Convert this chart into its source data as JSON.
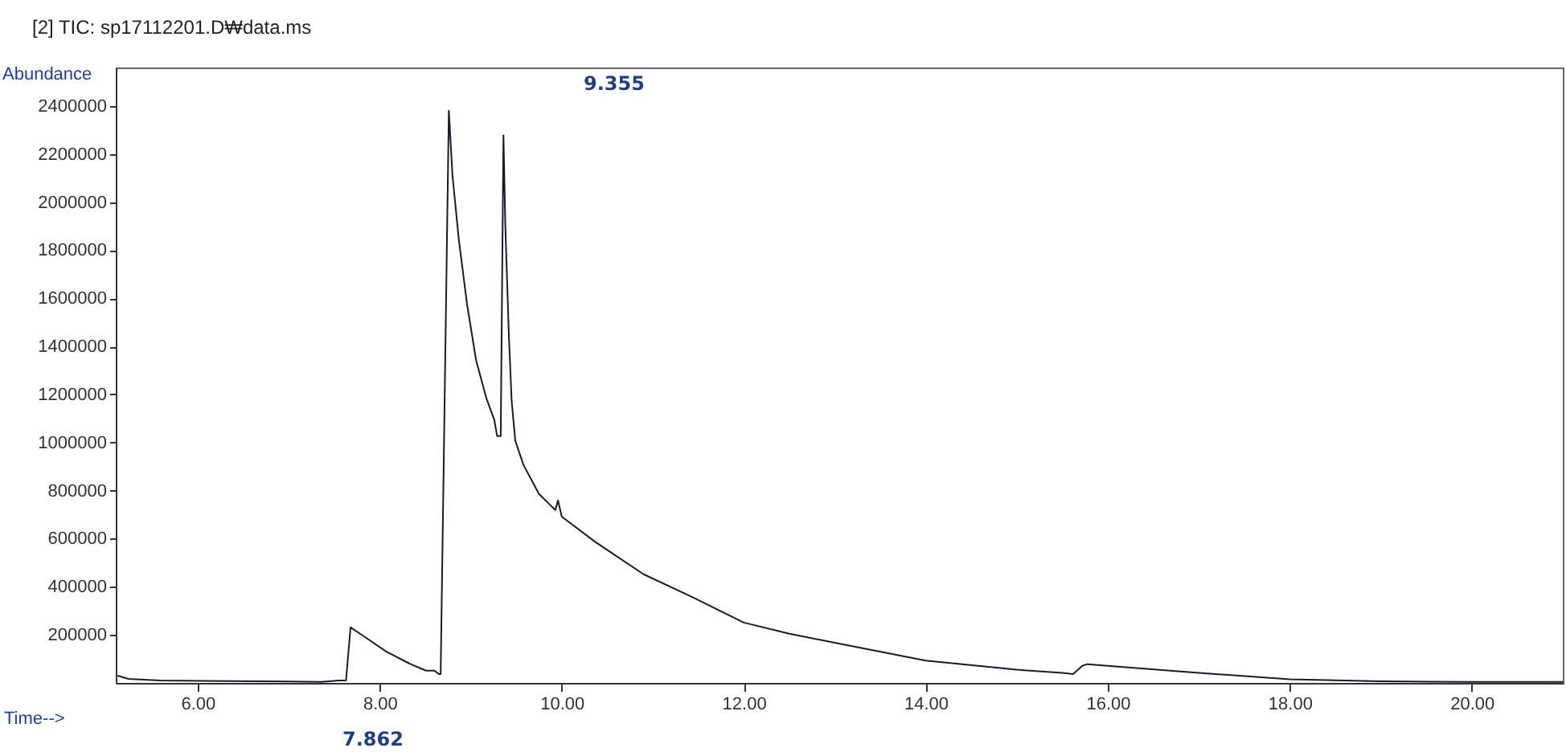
{
  "chart_data": {
    "type": "line",
    "title": "[2] TIC: sp17112201.D₩data.ms",
    "xlabel": "Time-->",
    "ylabel": "Abundance",
    "annotations": [
      "9.355",
      "7.862"
    ],
    "x": [
      5.12,
      5.24,
      5.59,
      7.0,
      7.36,
      7.55,
      7.63,
      7.68,
      7.81,
      8.07,
      8.34,
      8.51,
      8.6,
      8.65,
      8.67,
      8.71,
      8.76,
      8.8,
      8.87,
      8.96,
      9.06,
      9.17,
      9.26,
      9.29,
      9.33,
      9.35,
      9.36,
      9.38,
      9.42,
      9.45,
      9.49,
      9.58,
      9.75,
      9.93,
      9.96,
      10.0,
      10.37,
      10.9,
      11.43,
      12.0,
      12.5,
      13.0,
      14.0,
      15.0,
      15.5,
      15.62,
      15.72,
      15.78,
      16.0,
      17.0,
      18.0,
      19.0,
      20.0,
      21.0
    ],
    "series": [
      {
        "color": "#1a1a2a",
        "values": [
          30000,
          17000,
          10000,
          6000,
          4000,
          10000,
          10000,
          231000,
          198000,
          131000,
          78000,
          51000,
          51000,
          37000,
          37000,
          null,
          2380000,
          2110000,
          1843000,
          1575000,
          1341000,
          1187000,
          1093000,
          1027000,
          1027000,
          null,
          2278000,
          1910000,
          1441000,
          1174000,
          1007000,
          907000,
          786000,
          719000,
          759000,
          692000,
          586000,
          452000,
          358000,
          251000,
          205000,
          167000,
          93000,
          55000,
          42000,
          37000,
          71000,
          78000,
          71000,
          42000,
          15000,
          7000,
          4000,
          4000
        ]
      }
    ],
    "xlim": [
      5.1,
      21.0
    ],
    "ylim": [
      0,
      2560000
    ],
    "xticks": [
      {
        "value": 6,
        "label": "6.00"
      },
      {
        "value": 8,
        "label": "8.00"
      },
      {
        "value": 10,
        "label": "10.00"
      },
      {
        "value": 12,
        "label": "12.00"
      },
      {
        "value": 14,
        "label": "14.00"
      },
      {
        "value": 16,
        "label": "16.00"
      },
      {
        "value": 18,
        "label": "18.00"
      },
      {
        "value": 20,
        "label": "20.00"
      }
    ],
    "yticks": [
      200000,
      400000,
      600000,
      800000,
      1000000,
      1200000,
      1400000,
      1600000,
      1800000,
      2000000,
      2200000,
      2400000
    ],
    "grid": false,
    "marker": "none",
    "line_style": "solid"
  }
}
